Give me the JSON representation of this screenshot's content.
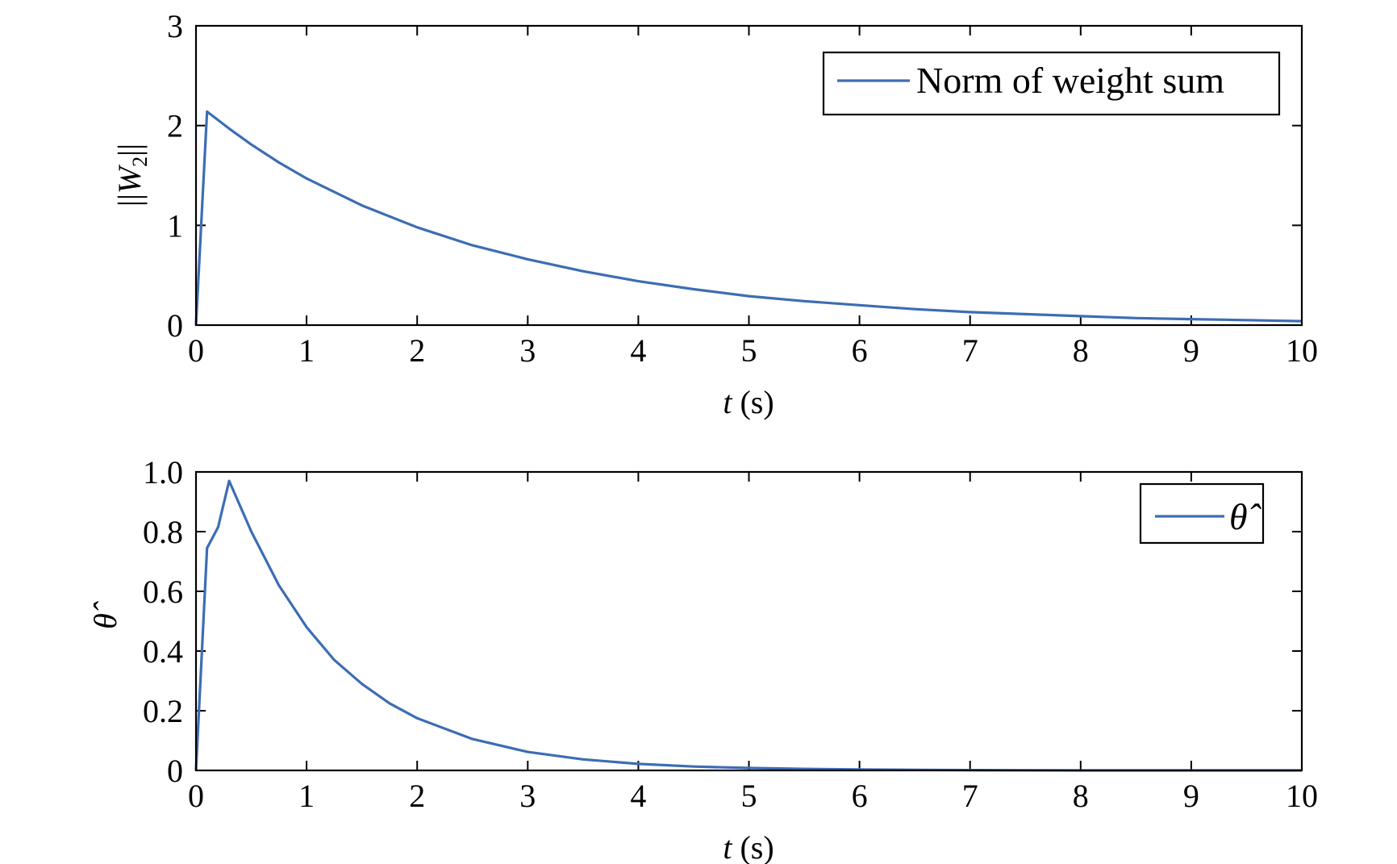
{
  "chart_data": [
    {
      "type": "line",
      "xlabel_var": "t",
      "xlabel_unit": " (s)",
      "ylabel_prefix": "||",
      "ylabel_var": "W",
      "ylabel_sub": "2",
      "ylabel_suffix": "||",
      "xlim": [
        0,
        10
      ],
      "ylim": [
        0,
        3
      ],
      "xticks": [
        0,
        1,
        2,
        3,
        4,
        5,
        6,
        7,
        8,
        9,
        10
      ],
      "xtick_labels": [
        "0",
        "1",
        "2",
        "3",
        "4",
        "5",
        "6",
        "7",
        "8",
        "9",
        "10"
      ],
      "yticks": [
        0,
        1,
        2,
        3
      ],
      "ytick_labels": [
        "0",
        "1",
        "2",
        "3"
      ],
      "grid": false,
      "legend_position": "top-right",
      "series": [
        {
          "name": "Norm of weight sum",
          "color": "#3d6db3",
          "x": [
            0,
            0.1,
            0.3,
            0.5,
            0.75,
            1,
            1.5,
            2,
            2.5,
            3,
            3.5,
            4,
            4.5,
            5,
            5.5,
            6,
            6.5,
            7,
            7.5,
            8,
            8.5,
            9,
            9.5,
            10
          ],
          "y": [
            0,
            2.14,
            1.97,
            1.81,
            1.63,
            1.47,
            1.2,
            0.98,
            0.8,
            0.66,
            0.54,
            0.44,
            0.36,
            0.29,
            0.24,
            0.2,
            0.16,
            0.13,
            0.11,
            0.09,
            0.07,
            0.06,
            0.05,
            0.04
          ]
        }
      ]
    },
    {
      "type": "line",
      "xlabel_var": "t",
      "xlabel_unit": " (s)",
      "ylabel_var": "θ̂",
      "xlim": [
        0,
        10
      ],
      "ylim": [
        0,
        1
      ],
      "xticks": [
        0,
        1,
        2,
        3,
        4,
        5,
        6,
        7,
        8,
        9,
        10
      ],
      "xtick_labels": [
        "0",
        "1",
        "2",
        "3",
        "4",
        "5",
        "6",
        "7",
        "8",
        "9",
        "10"
      ],
      "yticks": [
        0,
        0.2,
        0.4,
        0.6,
        0.8,
        1.0
      ],
      "ytick_labels": [
        "0",
        "0.2",
        "0.4",
        "0.6",
        "0.8",
        "1.0"
      ],
      "grid": false,
      "legend_position": "top-right",
      "series": [
        {
          "name": "θ̂",
          "color": "#3d6db3",
          "x": [
            0,
            0.1,
            0.2,
            0.3,
            0.5,
            0.75,
            1,
            1.25,
            1.5,
            1.75,
            2,
            2.5,
            3,
            3.5,
            4,
            4.5,
            5,
            5.5,
            6,
            7,
            8,
            9,
            10
          ],
          "y": [
            0,
            0.745,
            0.815,
            0.97,
            0.8,
            0.62,
            0.48,
            0.37,
            0.29,
            0.225,
            0.175,
            0.105,
            0.062,
            0.037,
            0.022,
            0.013,
            0.008,
            0.005,
            0.003,
            0.001,
            0,
            0,
            0
          ]
        }
      ]
    }
  ]
}
